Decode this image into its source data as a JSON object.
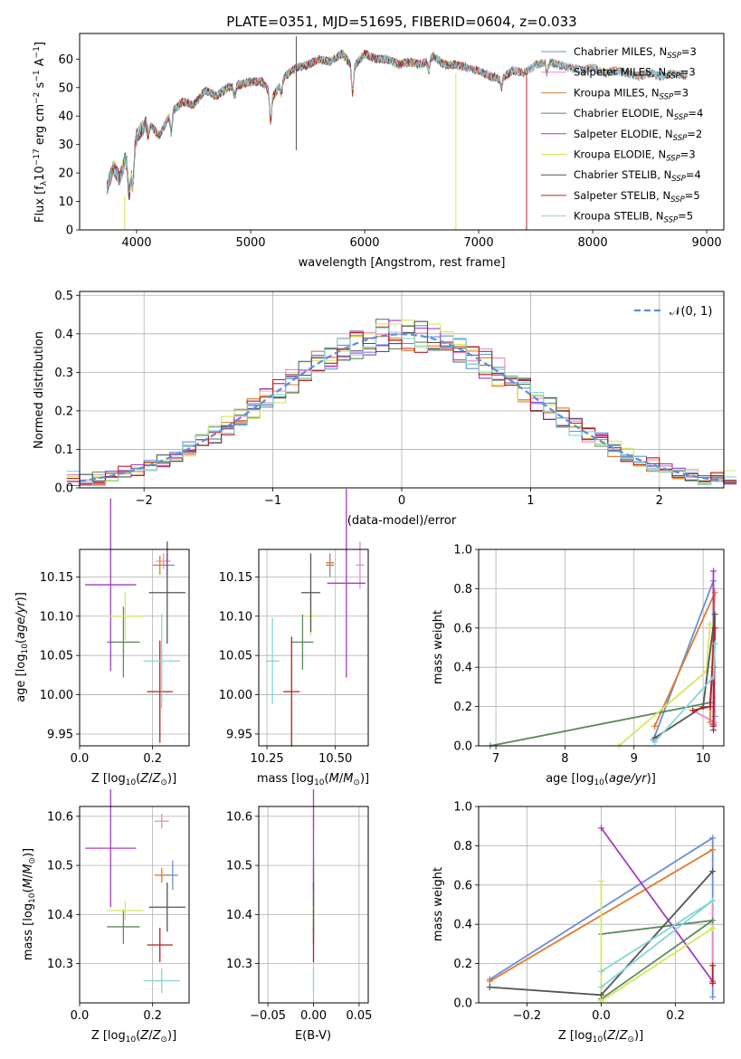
{
  "colors": {
    "chabrier_miles": "#6a8fd8",
    "salpeter_miles": "#e88ac4",
    "kroupa_miles": "#e07a2d",
    "chabrier_elodie": "#5a8a5e",
    "salpeter_elodie": "#a23cc4",
    "kroupa_elodie": "#d4e85a",
    "chabrier_stelib": "#555555",
    "salpeter_stelib": "#b5211f",
    "kroupa_stelib": "#86d4dc"
  },
  "chart_data": [
    {
      "id": "spectrum",
      "type": "line",
      "title": "PLATE=0351, MJD=51695, FIBERID=0604, z=0.033",
      "xlabel": "wavelength [Angstrom, rest frame]",
      "ylabel": "Flux [f_λ 10^-17 erg cm^-2 s^-1 A^-1]",
      "xlim": [
        3500,
        9150
      ],
      "ylim": [
        0,
        69
      ],
      "xticks": [
        4000,
        5000,
        6000,
        7000,
        8000,
        9000
      ],
      "yticks": [
        0,
        10,
        20,
        30,
        40,
        50,
        60
      ],
      "grid": false,
      "legend_position": "top-right",
      "continuum": {
        "x": [
          3740,
          3800,
          3850,
          3900,
          3950,
          4000,
          4100,
          4200,
          4300,
          4400,
          4500,
          4600,
          4700,
          4800,
          4900,
          5000,
          5100,
          5200,
          5300,
          5400,
          5500,
          5600,
          5700,
          5800,
          5900,
          6000,
          6100,
          6200,
          6300,
          6400,
          6500,
          6600,
          6700,
          6800,
          6900,
          7000,
          7100,
          7200,
          7300,
          7400,
          7500,
          7600,
          7700,
          7800,
          7900,
          8000,
          8100,
          8200,
          8300,
          8400,
          8500,
          8600,
          8700,
          8830
        ],
        "y": [
          15,
          22,
          18,
          25,
          20,
          33,
          38,
          33,
          41,
          45,
          44,
          49,
          47,
          50,
          51,
          52,
          52,
          47,
          54,
          57,
          58,
          60,
          59,
          62,
          57,
          62,
          60,
          60,
          58,
          59,
          58,
          61,
          58,
          58,
          57,
          56,
          54,
          53,
          56,
          55,
          58,
          59,
          58,
          57,
          56,
          57,
          55,
          56,
          55,
          54,
          55,
          54,
          55,
          54
        ]
      },
      "features": [
        {
          "wavelength": 3933,
          "depth": 9
        },
        {
          "wavelength": 3968,
          "depth": 9
        },
        {
          "wavelength": 4102,
          "depth": 5
        },
        {
          "wavelength": 4304,
          "depth": 7
        },
        {
          "wavelength": 4861,
          "depth": 4
        },
        {
          "wavelength": 5175,
          "depth": 10
        },
        {
          "wavelength": 5270,
          "depth": 4
        },
        {
          "wavelength": 5893,
          "depth": 9
        },
        {
          "wavelength": 6563,
          "depth": 4
        },
        {
          "wavelength": 7200,
          "depth": 3
        },
        {
          "wavelength": 7600,
          "depth": 4
        }
      ],
      "spikes": [
        {
          "series": 6,
          "wavelength": 5400,
          "low": 28,
          "high": 68
        },
        {
          "series": 5,
          "wavelength": 3895,
          "low": 0,
          "high": 12
        },
        {
          "series": 5,
          "wavelength": 6800,
          "low": 0,
          "high": 55
        },
        {
          "series": 7,
          "wavelength": 7420,
          "low": 0,
          "high": 54
        }
      ],
      "series": [
        {
          "name": "Chabrier MILES, N",
          "sub": "SSP",
          "nssp": "=3",
          "color": "#6a8fd8",
          "x_end": 8830
        },
        {
          "name": "Salpeter MILES, N",
          "sub": "SSP",
          "nssp": "=3",
          "color": "#e88ac4",
          "x_end": 8830
        },
        {
          "name": "Kroupa MILES, N",
          "sub": "SSP",
          "nssp": "=3",
          "color": "#e07a2d",
          "x_end": 8830
        },
        {
          "name": "Chabrier ELODIE, N",
          "sub": "SSP",
          "nssp": "=4",
          "color": "#5a8a5e",
          "x_end": 6800
        },
        {
          "name": "Salpeter ELODIE, N",
          "sub": "SSP",
          "nssp": "=2",
          "color": "#a23cc4",
          "x_end": 6800
        },
        {
          "name": "Kroupa ELODIE, N",
          "sub": "SSP",
          "nssp": "=3",
          "color": "#d4e85a",
          "x_end": 6800
        },
        {
          "name": "Chabrier STELIB, N",
          "sub": "SSP",
          "nssp": "=4",
          "color": "#555555",
          "x_end": 8830
        },
        {
          "name": "Salpeter STELIB, N",
          "sub": "SSP",
          "nssp": "=5",
          "color": "#b5211f",
          "x_end": 7420
        },
        {
          "name": "Kroupa STELIB, N",
          "sub": "SSP",
          "nssp": "=5",
          "color": "#86d4dc",
          "x_end": 8830
        }
      ]
    },
    {
      "id": "residuals",
      "type": "line",
      "xlabel": "(data-model)/error",
      "ylabel": "Normed distribution",
      "xlim": [
        -2.5,
        2.5
      ],
      "ylim": [
        0,
        0.51
      ],
      "xticks": [
        -2,
        -1,
        0,
        1,
        2
      ],
      "yticks": [
        0.0,
        0.1,
        0.2,
        0.3,
        0.4,
        0.5
      ],
      "grid": true,
      "legend_position": "top-right",
      "bin_width": 0.1,
      "gaussian": {
        "label": "𝒩(0, 1)",
        "color": "#5b8fd9",
        "mean": 0,
        "sigma": 1
      },
      "histogram_count": 9
    },
    {
      "id": "age_vs_Z",
      "type": "scatter",
      "xlabel": "Z [log10(Z/Z☉)]",
      "ylabel": "age [log10(age/yr)]",
      "xlim": [
        0.0,
        0.3
      ],
      "ylim": [
        9.935,
        10.185
      ],
      "xticks": [
        0.0,
        0.2
      ],
      "yticks": [
        9.95,
        10.0,
        10.05,
        10.1,
        10.15
      ],
      "grid": true,
      "points": [
        {
          "series": 0,
          "x": 0.24,
          "xerr": 0.02,
          "y": 10.165,
          "yerr": 0.015
        },
        {
          "series": 1,
          "x": 0.23,
          "xerr": 0.02,
          "y": 10.17,
          "yerr": 0.01
        },
        {
          "series": 2,
          "x": 0.22,
          "xerr": 0.02,
          "y": 10.165,
          "yerr": 0.012
        },
        {
          "series": 3,
          "x": 0.12,
          "xerr": 0.045,
          "y": 10.067,
          "yerr": 0.045
        },
        {
          "series": 4,
          "x": 0.085,
          "xerr": 0.07,
          "y": 10.14,
          "yerr": 0.11
        },
        {
          "series": 5,
          "x": 0.125,
          "xerr": 0.05,
          "y": 10.1,
          "yerr": 0.03
        },
        {
          "series": 6,
          "x": 0.24,
          "xerr": 0.05,
          "y": 10.13,
          "yerr": 0.065
        },
        {
          "series": 7,
          "x": 0.22,
          "xerr": 0.035,
          "y": 10.004,
          "yerr": 0.065
        },
        {
          "series": 8,
          "x": 0.225,
          "xerr": 0.05,
          "y": 10.043,
          "yerr": 0.06
        }
      ]
    },
    {
      "id": "age_vs_mass",
      "type": "scatter",
      "xlabel": "mass [log10(M/M☉)]",
      "xlim": [
        10.22,
        10.62
      ],
      "ylim": [
        9.935,
        10.185
      ],
      "xticks": [
        10.25,
        10.5
      ],
      "yticks": [
        9.95,
        10.0,
        10.05,
        10.1,
        10.15
      ],
      "grid": true,
      "points": [
        {
          "series": 0,
          "x": 10.48,
          "xerr": 0.015,
          "y": 10.165,
          "yerr": 0.015
        },
        {
          "series": 1,
          "x": 10.59,
          "xerr": 0.015,
          "y": 10.165,
          "yerr": 0.03
        },
        {
          "series": 2,
          "x": 10.48,
          "xerr": 0.015,
          "y": 10.168,
          "yerr": 0.01
        },
        {
          "series": 3,
          "x": 10.38,
          "xerr": 0.04,
          "y": 10.067,
          "yerr": 0.035
        },
        {
          "series": 4,
          "x": 10.54,
          "xerr": 0.07,
          "y": 10.142,
          "yerr": 0.12
        },
        {
          "series": 5,
          "x": 10.41,
          "xerr": 0.02,
          "y": 10.1,
          "yerr": 0.025
        },
        {
          "series": 6,
          "x": 10.41,
          "xerr": 0.035,
          "y": 10.13,
          "yerr": 0.05
        },
        {
          "series": 7,
          "x": 10.34,
          "xerr": 0.03,
          "y": 10.004,
          "yerr": 0.07
        },
        {
          "series": 8,
          "x": 10.27,
          "xerr": 0.025,
          "y": 10.043,
          "yerr": 0.055
        }
      ]
    },
    {
      "id": "weight_vs_age",
      "type": "line",
      "xlabel": "age [log10(age/yr)]",
      "ylabel": "mass weight",
      "xlim": [
        6.75,
        10.3
      ],
      "ylim": [
        0.0,
        1.0
      ],
      "xticks": [
        7,
        8,
        9,
        10
      ],
      "yticks": [
        0.0,
        0.2,
        0.4,
        0.6,
        0.8,
        1.0
      ],
      "grid": true,
      "lines": [
        {
          "series": 0,
          "x": [
            9.28,
            10.15,
            10.17
          ],
          "y": [
            0.03,
            0.84,
            0.15
          ]
        },
        {
          "series": 1,
          "x": [
            9.85,
            10.17,
            10.15
          ],
          "y": [
            0.18,
            0.12,
            0.8
          ]
        },
        {
          "series": 2,
          "x": [
            9.3,
            10.17,
            10.1
          ],
          "y": [
            0.1,
            0.78,
            0.12
          ]
        },
        {
          "series": 3,
          "x": [
            6.92,
            10.1,
            10.17,
            10.15
          ],
          "y": [
            0.0,
            0.22,
            0.52,
            0.4
          ]
        },
        {
          "series": 4,
          "x": [
            10.15,
            10.15
          ],
          "y": [
            0.11,
            0.89
          ]
        },
        {
          "series": 5,
          "x": [
            8.78,
            10.05,
            10.1
          ],
          "y": [
            0.0,
            0.38,
            0.62
          ]
        },
        {
          "series": 6,
          "x": [
            9.3,
            10.0,
            10.17,
            10.15
          ],
          "y": [
            0.04,
            0.2,
            0.67,
            0.08
          ]
        },
        {
          "series": 7,
          "x": [
            9.85,
            10.1,
            10.17,
            10.15
          ],
          "y": [
            0.18,
            0.2,
            0.6,
            0.1
          ]
        },
        {
          "series": 8,
          "x": [
            9.3,
            10.15,
            10.17
          ],
          "y": [
            0.02,
            0.35,
            0.52
          ]
        }
      ]
    },
    {
      "id": "mass_vs_Z",
      "type": "scatter",
      "xlabel": "Z [log10(Z/Z☉)]",
      "ylabel": "mass [log10(M/M☉)]",
      "xlim": [
        0.0,
        0.3
      ],
      "ylim": [
        10.22,
        10.62
      ],
      "xticks": [
        0.0,
        0.2
      ],
      "yticks": [
        10.3,
        10.4,
        10.5,
        10.6
      ],
      "grid": true,
      "points": [
        {
          "series": 0,
          "x": 0.255,
          "xerr": 0.015,
          "y": 10.48,
          "yerr": 0.03
        },
        {
          "series": 1,
          "x": 0.225,
          "xerr": 0.02,
          "y": 10.59,
          "yerr": 0.015
        },
        {
          "series": 2,
          "x": 0.225,
          "xerr": 0.02,
          "y": 10.48,
          "yerr": 0.015
        },
        {
          "series": 3,
          "x": 0.12,
          "xerr": 0.045,
          "y": 10.375,
          "yerr": 0.035
        },
        {
          "series": 4,
          "x": 0.085,
          "xerr": 0.07,
          "y": 10.535,
          "yerr": 0.12
        },
        {
          "series": 5,
          "x": 0.125,
          "xerr": 0.05,
          "y": 10.408,
          "yerr": 0.02
        },
        {
          "series": 6,
          "x": 0.24,
          "xerr": 0.05,
          "y": 10.415,
          "yerr": 0.05
        },
        {
          "series": 7,
          "x": 0.22,
          "xerr": 0.035,
          "y": 10.338,
          "yerr": 0.035
        },
        {
          "series": 8,
          "x": 0.225,
          "xerr": 0.05,
          "y": 10.265,
          "yerr": 0.025
        }
      ]
    },
    {
      "id": "mass_vs_EBV",
      "type": "scatter",
      "xlabel": "E(B-V)",
      "xlim": [
        -0.06,
        0.06
      ],
      "ylim": [
        10.22,
        10.62
      ],
      "xticks": [
        -0.05,
        0.0,
        0.05
      ],
      "yticks": [
        10.3,
        10.4,
        10.5,
        10.6
      ],
      "grid": true,
      "points": [
        {
          "series": 0,
          "x": 0.0,
          "xerr": 0.0,
          "y": 10.48,
          "yerr": 0.03
        },
        {
          "series": 1,
          "x": 0.0,
          "xerr": 0.0,
          "y": 10.59,
          "yerr": 0.015
        },
        {
          "series": 2,
          "x": 0.0,
          "xerr": 0.0,
          "y": 10.48,
          "yerr": 0.015
        },
        {
          "series": 3,
          "x": 0.0,
          "xerr": 0.0,
          "y": 10.375,
          "yerr": 0.035
        },
        {
          "series": 4,
          "x": 0.0,
          "xerr": 0.0,
          "y": 10.535,
          "yerr": 0.12
        },
        {
          "series": 5,
          "x": 0.0,
          "xerr": 0.0,
          "y": 10.408,
          "yerr": 0.02
        },
        {
          "series": 6,
          "x": 0.0,
          "xerr": 0.0,
          "y": 10.415,
          "yerr": 0.05
        },
        {
          "series": 7,
          "x": 0.0,
          "xerr": 0.0,
          "y": 10.338,
          "yerr": 0.035
        },
        {
          "series": 8,
          "x": 0.0,
          "xerr": 0.0,
          "y": 10.265,
          "yerr": 0.025
        }
      ]
    },
    {
      "id": "weight_vs_Z",
      "type": "line",
      "xlabel": "Z [log10(Z/Z☉)]",
      "ylabel": "mass weight",
      "xlim": [
        -0.33,
        0.33
      ],
      "ylim": [
        0.0,
        1.0
      ],
      "xticks": [
        -0.2,
        0.0,
        0.2
      ],
      "yticks": [
        0.0,
        0.2,
        0.4,
        0.6,
        0.8,
        1.0
      ],
      "grid": true,
      "lines": [
        {
          "series": 0,
          "x": [
            -0.3,
            0.3,
            0.3
          ],
          "y": [
            0.12,
            0.84,
            0.03
          ]
        },
        {
          "series": 1,
          "x": [
            0.3,
            0.3,
            0.3
          ],
          "y": [
            0.1,
            0.52,
            0.2
          ]
        },
        {
          "series": 2,
          "x": [
            -0.3,
            0.3
          ],
          "y": [
            0.11,
            0.78
          ]
        },
        {
          "series": 3,
          "x": [
            0.0,
            0.3,
            0.0
          ],
          "y": [
            0.02,
            0.42,
            0.35
          ]
        },
        {
          "series": 4,
          "x": [
            0.0,
            0.3
          ],
          "y": [
            0.89,
            0.11
          ]
        },
        {
          "series": 5,
          "x": [
            0.0,
            0.0,
            0.3
          ],
          "y": [
            0.62,
            0.01,
            0.38
          ]
        },
        {
          "series": 6,
          "x": [
            -0.3,
            0.0,
            0.3
          ],
          "y": [
            0.08,
            0.04,
            0.67
          ]
        },
        {
          "series": 7,
          "x": [
            0.3,
            0.3
          ],
          "y": [
            0.19,
            0.1
          ]
        },
        {
          "series": 8,
          "x": [
            0.0,
            0.3,
            0.0
          ],
          "y": [
            0.08,
            0.52,
            0.16
          ]
        }
      ]
    }
  ]
}
